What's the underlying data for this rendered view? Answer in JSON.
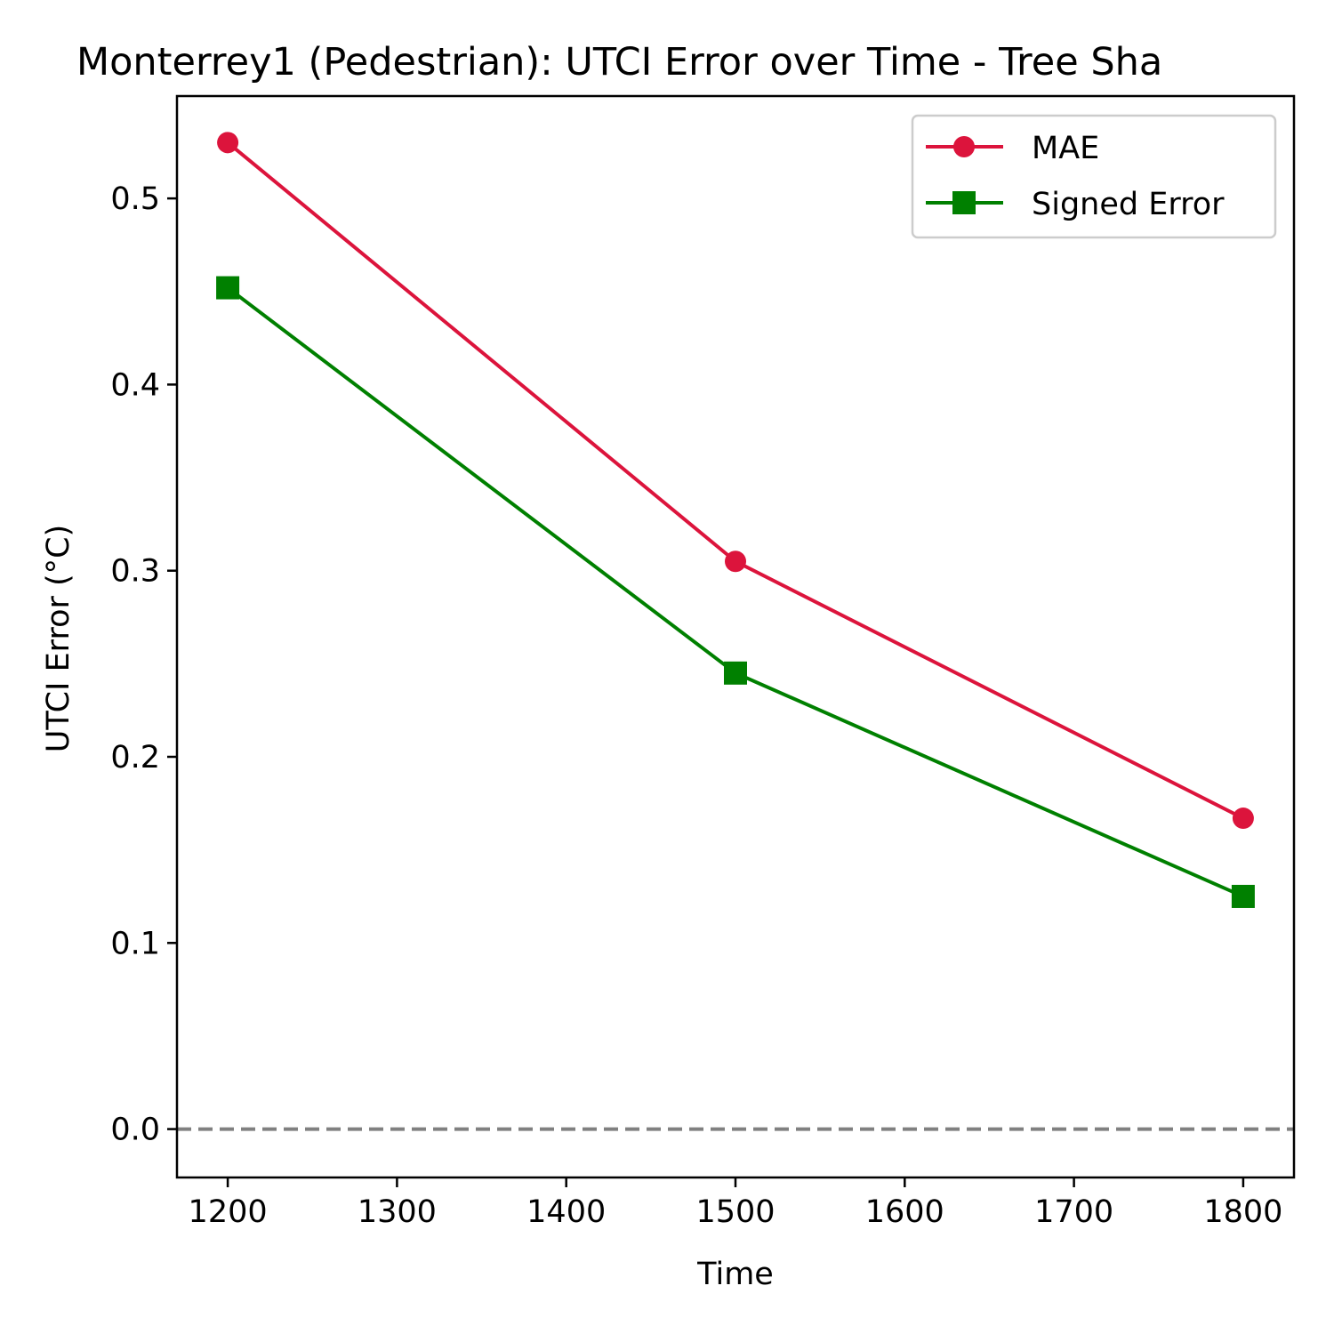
{
  "chart_data": {
    "type": "line",
    "title": "Monterrey1 (Pedestrian): UTCI Error over Time - Tree Sha",
    "xlabel": "Time",
    "ylabel": "UTCI Error (°C)",
    "xlim": [
      1170,
      1830
    ],
    "ylim": [
      -0.026,
      0.555
    ],
    "xticks": [
      1200,
      1300,
      1400,
      1500,
      1600,
      1700,
      1800
    ],
    "xtick_labels": [
      "1200",
      "1300",
      "1400",
      "1500",
      "1600",
      "1700",
      "1800"
    ],
    "yticks": [
      0.0,
      0.1,
      0.2,
      0.3,
      0.4,
      0.5
    ],
    "ytick_labels": [
      "0.0",
      "0.1",
      "0.2",
      "0.3",
      "0.4",
      "0.5"
    ],
    "grid": false,
    "legend_position": "top-right",
    "reference_line": {
      "y": 0.0,
      "style": "dashed",
      "color": "#808080"
    },
    "series": [
      {
        "name": "MAE",
        "x": [
          1200,
          1500,
          1800
        ],
        "values": [
          0.53,
          0.305,
          0.167
        ],
        "color": "#dc143c",
        "marker": "circle"
      },
      {
        "name": "Signed Error",
        "x": [
          1200,
          1500,
          1800
        ],
        "values": [
          0.452,
          0.245,
          0.125
        ],
        "color": "#008000",
        "marker": "square"
      }
    ]
  }
}
